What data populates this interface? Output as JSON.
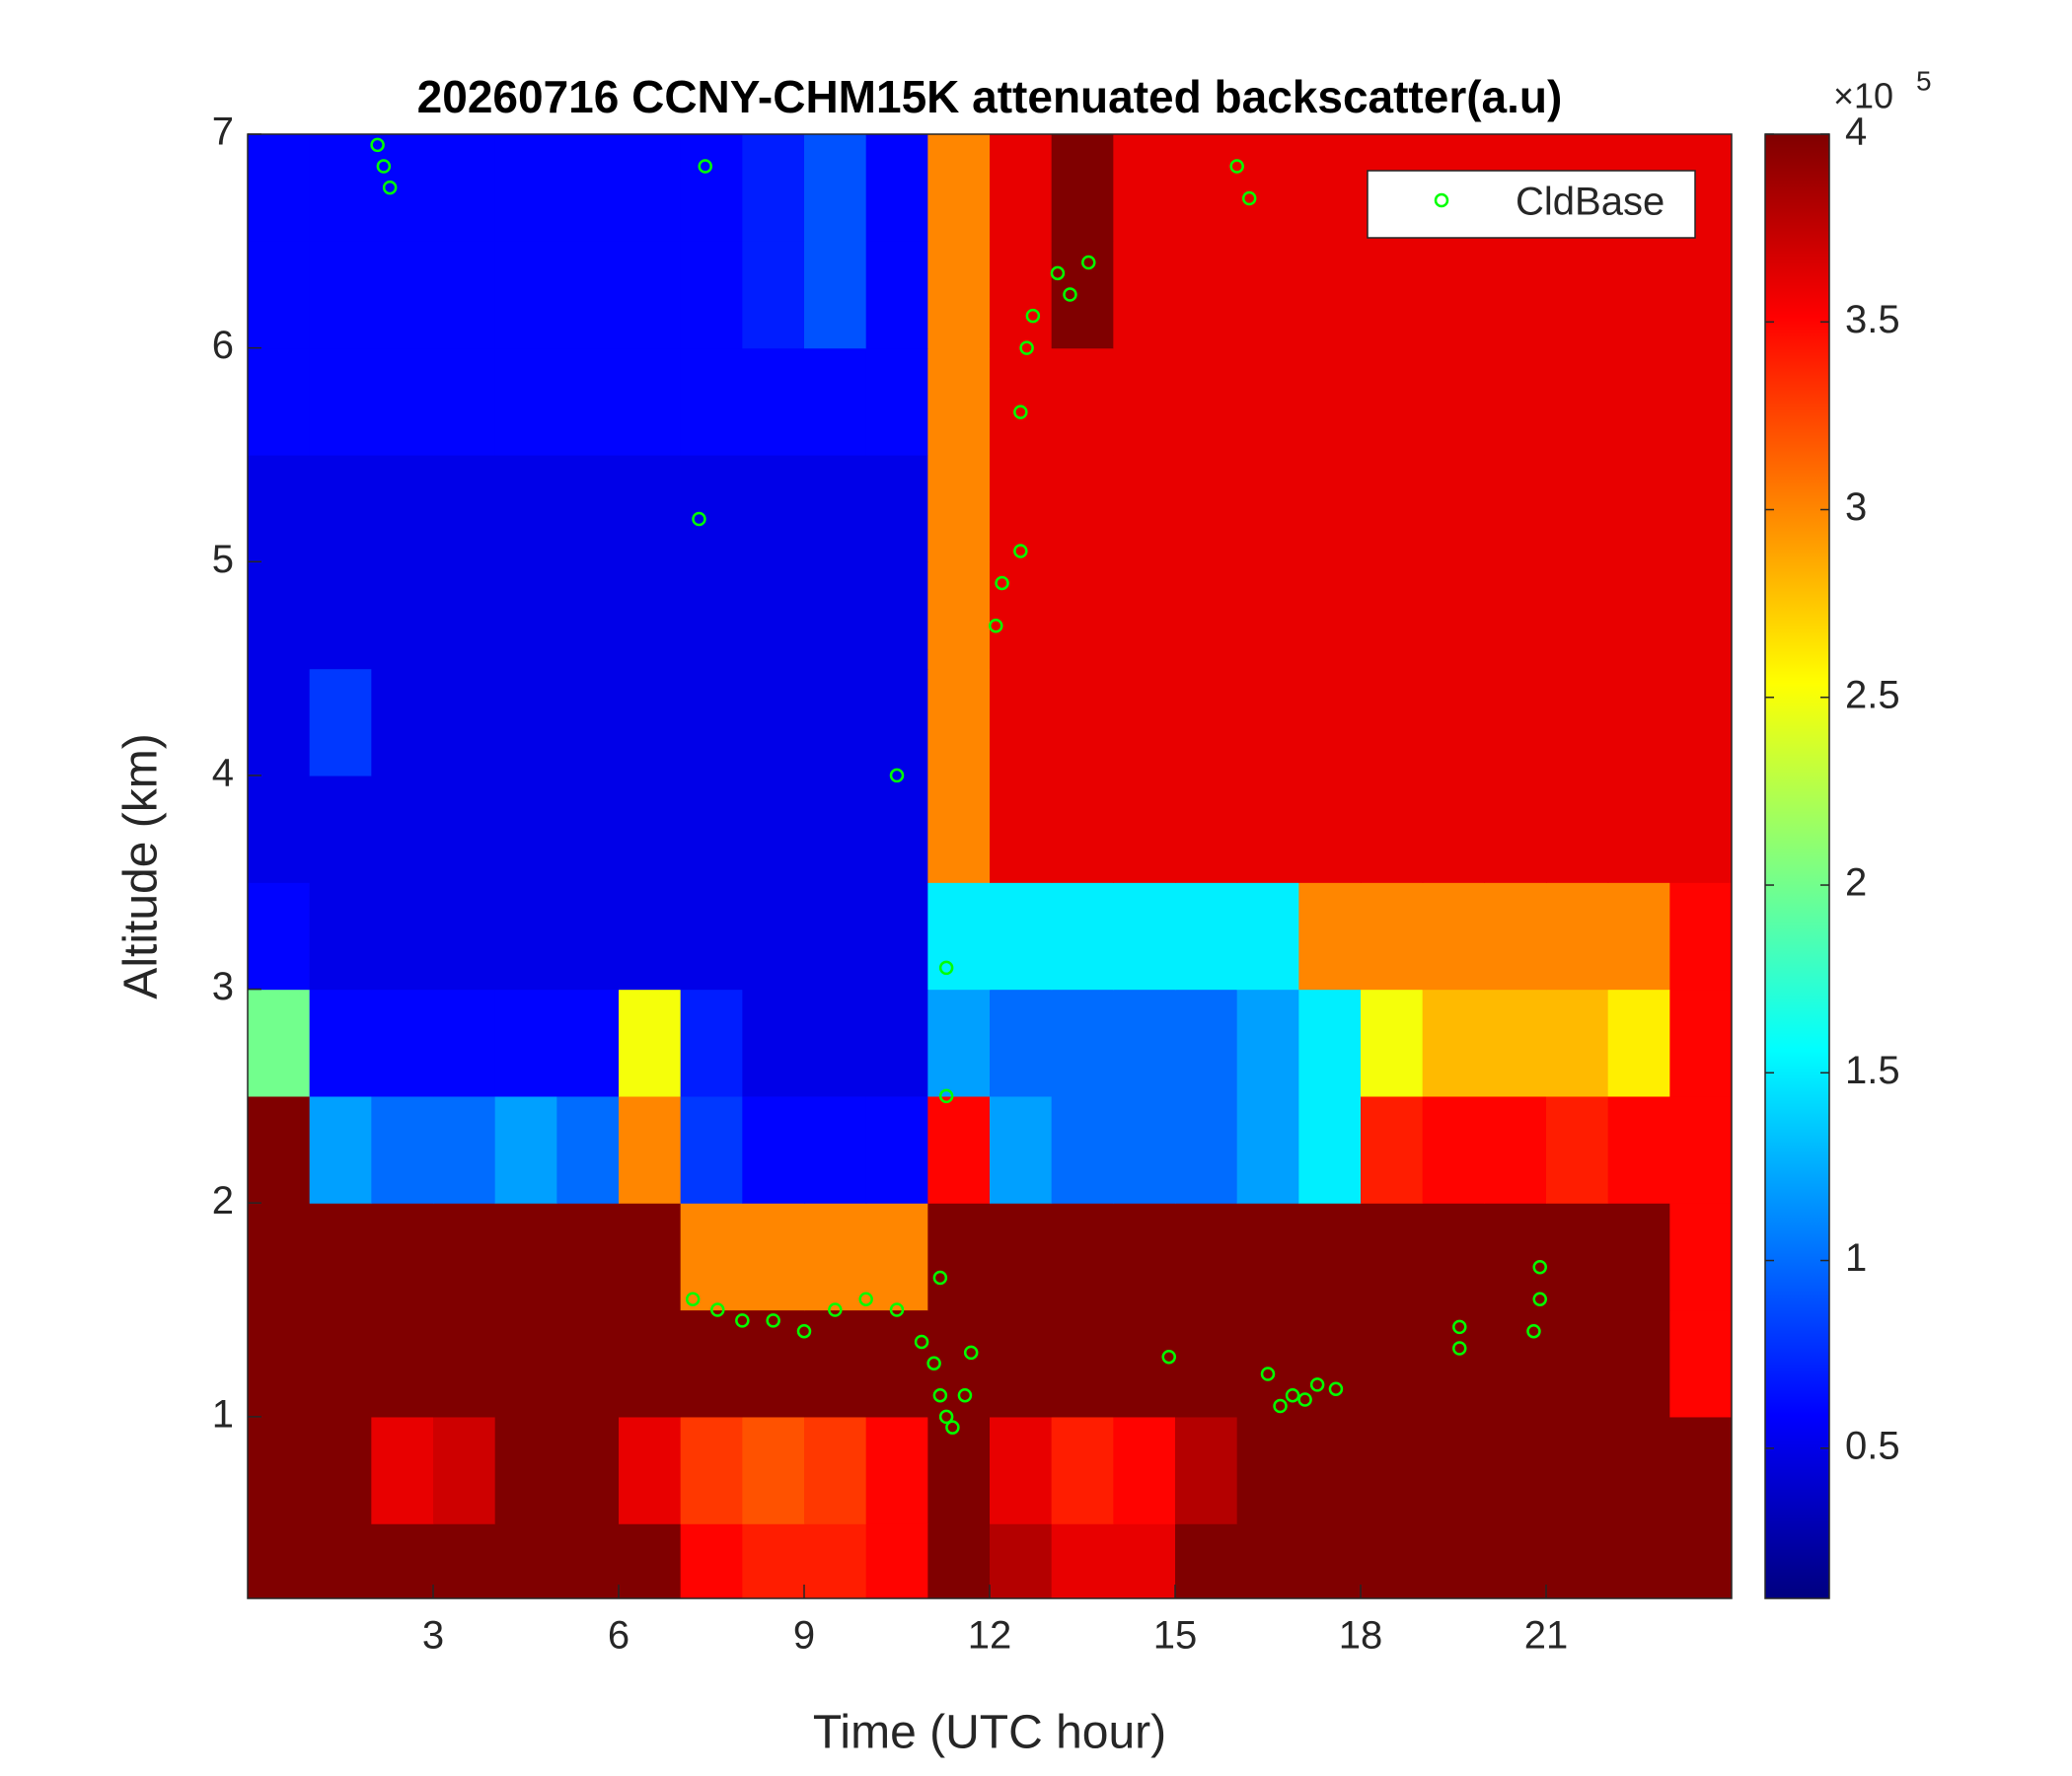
{
  "chart_data": {
    "type": "heatmap",
    "title": "20260716 CCNY-CHM15K attenuated backscatter(a.u)",
    "x_label": "Time (UTC hour)",
    "y_label": "Altitude (km)",
    "colormap": "jet",
    "xlim": [
      0,
      24
    ],
    "ylim": [
      0.15,
      7
    ],
    "xticks": [
      3,
      6,
      9,
      12,
      15,
      18,
      21
    ],
    "yticks": [
      1,
      2,
      3,
      4,
      5,
      6,
      7
    ],
    "clim": [
      0.1,
      4
    ],
    "cticks": [
      0.5,
      1,
      1.5,
      2,
      2.5,
      3,
      3.5,
      4
    ],
    "colorbar_multiplier": {
      "base": "×10",
      "exponent": "5"
    },
    "x_edges": [
      0,
      1,
      2,
      3,
      4,
      5,
      6,
      7,
      8,
      9,
      10,
      11,
      12,
      13,
      14,
      15,
      16,
      17,
      18,
      19,
      20,
      21,
      22,
      23,
      24
    ],
    "y_edges": [
      0.15,
      0.5,
      1,
      1.5,
      2,
      2.5,
      3,
      3.5,
      4,
      4.5,
      5,
      5.5,
      6,
      6.5,
      7
    ],
    "z": [
      [
        4,
        4,
        4,
        4,
        4,
        4,
        4,
        3.5,
        3.4,
        3.4,
        3.5,
        4,
        3.8,
        3.6,
        3.6,
        4,
        4,
        4,
        4,
        4,
        4,
        4,
        4,
        4
      ],
      [
        4,
        4,
        3.6,
        3.7,
        4,
        4,
        3.6,
        3.3,
        3.2,
        3.3,
        3.5,
        4,
        3.6,
        3.4,
        3.5,
        3.8,
        4,
        4,
        4,
        4,
        4,
        4,
        4,
        4
      ],
      [
        4,
        4,
        4,
        4,
        4,
        4,
        4,
        4,
        4,
        4,
        4,
        4,
        4,
        4,
        4,
        4,
        4,
        4,
        4,
        4,
        4,
        4,
        4,
        3.5
      ],
      [
        4,
        4,
        4,
        4,
        4,
        4,
        4,
        3,
        3,
        3,
        3,
        4,
        4,
        4,
        4,
        4,
        4,
        4,
        4,
        4,
        4,
        4,
        4,
        3.5
      ],
      [
        4,
        1.2,
        1,
        1,
        1.2,
        1,
        3,
        0.8,
        0.6,
        0.6,
        0.6,
        3.5,
        1.2,
        1,
        1,
        1,
        1.2,
        1.5,
        3.4,
        3.5,
        3.5,
        3.4,
        3.5,
        3.5
      ],
      [
        2,
        0.6,
        0.6,
        0.6,
        0.6,
        0.6,
        2.5,
        0.7,
        0.5,
        0.5,
        0.5,
        1.2,
        1,
        1,
        1,
        1,
        1.2,
        1.5,
        2.5,
        2.8,
        2.8,
        2.8,
        2.6,
        3.5
      ],
      [
        0.6,
        0.5,
        0.5,
        0.5,
        0.5,
        0.5,
        0.5,
        0.5,
        0.5,
        0.5,
        0.5,
        1.5,
        1.5,
        1.5,
        1.5,
        1.5,
        1.5,
        3,
        3,
        3,
        3,
        3,
        3,
        3.5
      ],
      [
        0.5,
        0.5,
        0.5,
        0.5,
        0.5,
        0.5,
        0.5,
        0.5,
        0.5,
        0.5,
        0.5,
        3,
        3.6,
        3.6,
        3.6,
        3.6,
        3.6,
        3.6,
        3.6,
        3.6,
        3.6,
        3.6,
        3.6,
        3.6
      ],
      [
        0.5,
        0.8,
        0.5,
        0.5,
        0.5,
        0.5,
        0.5,
        0.5,
        0.5,
        0.5,
        0.5,
        3,
        3.6,
        3.6,
        3.6,
        3.6,
        3.6,
        3.6,
        3.6,
        3.6,
        3.6,
        3.6,
        3.6,
        3.6
      ],
      [
        0.5,
        0.5,
        0.5,
        0.5,
        0.5,
        0.5,
        0.5,
        0.5,
        0.5,
        0.5,
        0.5,
        3,
        3.6,
        3.6,
        3.6,
        3.6,
        3.6,
        3.6,
        3.6,
        3.6,
        3.6,
        3.6,
        3.6,
        3.6
      ],
      [
        0.5,
        0.5,
        0.5,
        0.5,
        0.5,
        0.5,
        0.5,
        0.5,
        0.5,
        0.5,
        0.5,
        3,
        3.6,
        3.6,
        3.6,
        3.6,
        3.6,
        3.6,
        3.6,
        3.6,
        3.6,
        3.6,
        3.6,
        3.6
      ],
      [
        0.6,
        0.6,
        0.6,
        0.6,
        0.6,
        0.6,
        0.6,
        0.6,
        0.6,
        0.6,
        0.6,
        3,
        3.6,
        3.6,
        3.6,
        3.6,
        3.6,
        3.6,
        3.6,
        3.6,
        3.6,
        3.6,
        3.6,
        3.6
      ],
      [
        0.6,
        0.6,
        0.6,
        0.6,
        0.6,
        0.6,
        0.6,
        0.6,
        0.7,
        0.9,
        0.6,
        3,
        3.6,
        4,
        3.6,
        3.6,
        3.6,
        3.6,
        3.6,
        3.6,
        3.6,
        3.6,
        3.6,
        3.6
      ],
      [
        0.6,
        0.6,
        0.6,
        0.6,
        0.6,
        0.6,
        0.6,
        0.6,
        0.7,
        0.9,
        0.6,
        3,
        3.6,
        4,
        3.6,
        3.6,
        3.6,
        3.6,
        3.6,
        3.6,
        3.6,
        3.6,
        3.6,
        3.6
      ]
    ],
    "legend": "upper right",
    "series": [
      {
        "name": "CldBase",
        "type": "scatter",
        "color": "#00ff00",
        "x": [
          2.1,
          2.2,
          2.3,
          7.4,
          7.3,
          10.5,
          7.2,
          7.6,
          8,
          8.5,
          9,
          9.5,
          10,
          10.5,
          10.9,
          11.1,
          11.2,
          11.3,
          11.4,
          11.6,
          11.7,
          11.2,
          11.3,
          11.3,
          12.1,
          12.2,
          12.5,
          12.5,
          12.6,
          12.7,
          13.1,
          13.3,
          13.6,
          16,
          16.2,
          14.9,
          16.5,
          16.7,
          16.9,
          17.1,
          17.3,
          17.6,
          19.6,
          19.6,
          20.8,
          20.9,
          20.9
        ],
        "y": [
          6.95,
          6.85,
          6.75,
          6.85,
          5.2,
          4,
          1.55,
          1.5,
          1.45,
          1.45,
          1.4,
          1.5,
          1.55,
          1.5,
          1.35,
          1.25,
          1.1,
          1,
          0.95,
          1.1,
          1.3,
          1.65,
          2.5,
          3.1,
          4.7,
          4.9,
          5.05,
          5.7,
          6,
          6.15,
          6.35,
          6.25,
          6.4,
          6.85,
          6.7,
          1.28,
          1.2,
          1.05,
          1.1,
          1.08,
          1.15,
          1.13,
          1.32,
          1.42,
          1.4,
          1.55,
          1.7
        ]
      }
    ]
  }
}
